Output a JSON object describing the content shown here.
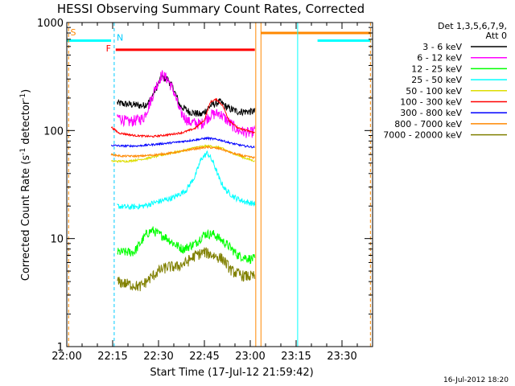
{
  "chart_data": {
    "type": "line",
    "title": "HESSI Observing Summary Count Rates, Corrected",
    "xlabel": "Start Time (17-Jul-12 21:59:42)",
    "ylabel": "Corrected Count Rate (s",
    "ylabel_sup1": "-1",
    "ylabel_mid": " detector",
    "ylabel_sup2": "-1",
    "ylabel_end": ")",
    "xlim_min": [
      0,
      100
    ],
    "ylim": [
      1,
      1000
    ],
    "yscale": "log",
    "x_ticks": [
      {
        "label": "22:00",
        "min": 0
      },
      {
        "label": "22:15",
        "min": 15
      },
      {
        "label": "22:30",
        "min": 30
      },
      {
        "label": "22:45",
        "min": 45
      },
      {
        "label": "23:00",
        "min": 60
      },
      {
        "label": "23:15",
        "min": 75
      },
      {
        "label": "23:30",
        "min": 90
      }
    ],
    "y_ticks": [
      {
        "label": "1",
        "value": 1
      },
      {
        "label": "10",
        "value": 10
      },
      {
        "label": "100",
        "value": 100
      },
      {
        "label": "1000",
        "value": 1000
      }
    ],
    "legend_header": [
      "Det 1,3,5,6,7,9,",
      "Att 0"
    ],
    "legend_position": "right",
    "series": [
      {
        "name": "3 - 6 keV",
        "color": "#000000",
        "noise": 0.08,
        "points": [
          [
            16.5,
            180
          ],
          [
            20,
            175
          ],
          [
            25,
            170
          ],
          [
            27,
            185
          ],
          [
            29,
            240
          ],
          [
            31,
            310
          ],
          [
            33,
            300
          ],
          [
            35,
            240
          ],
          [
            37,
            170
          ],
          [
            40,
            150
          ],
          [
            44,
            140
          ],
          [
            47,
            170
          ],
          [
            50,
            185
          ],
          [
            53,
            160
          ],
          [
            56,
            150
          ],
          [
            60,
            150
          ],
          [
            61.5,
            150
          ]
        ]
      },
      {
        "name": "6 - 12 keV",
        "color": "#ff00ff",
        "noise": 0.12,
        "points": [
          [
            16.5,
            135
          ],
          [
            20,
            120
          ],
          [
            25,
            130
          ],
          [
            27,
            175
          ],
          [
            29,
            250
          ],
          [
            31,
            330
          ],
          [
            33,
            300
          ],
          [
            35,
            230
          ],
          [
            37,
            150
          ],
          [
            40,
            120
          ],
          [
            44,
            115
          ],
          [
            47,
            140
          ],
          [
            50,
            145
          ],
          [
            53,
            120
          ],
          [
            56,
            100
          ],
          [
            60,
            95
          ],
          [
            61.5,
            100
          ]
        ]
      },
      {
        "name": "12 - 25 keV",
        "color": "#00ff00",
        "noise": 0.1,
        "points": [
          [
            16.5,
            7.5
          ],
          [
            20,
            7.5
          ],
          [
            22,
            7.5
          ],
          [
            24,
            9
          ],
          [
            26,
            11
          ],
          [
            28,
            12
          ],
          [
            30,
            11
          ],
          [
            32,
            10.5
          ],
          [
            35,
            9
          ],
          [
            38,
            8
          ],
          [
            42,
            9
          ],
          [
            45,
            11
          ],
          [
            48,
            11
          ],
          [
            50,
            10
          ],
          [
            53,
            8.5
          ],
          [
            56,
            7
          ],
          [
            60,
            6.5
          ],
          [
            61.5,
            6.5
          ]
        ]
      },
      {
        "name": "25 - 50 keV",
        "color": "#00ffff",
        "noise": 0.06,
        "points": [
          [
            16.5,
            20
          ],
          [
            20,
            19.5
          ],
          [
            25,
            20
          ],
          [
            30,
            22
          ],
          [
            35,
            24
          ],
          [
            39,
            28
          ],
          [
            42,
            38
          ],
          [
            44,
            55
          ],
          [
            46,
            62
          ],
          [
            48,
            50
          ],
          [
            50,
            35
          ],
          [
            52,
            28
          ],
          [
            55,
            24
          ],
          [
            58,
            22
          ],
          [
            61.5,
            21
          ]
        ]
      },
      {
        "name": "50 - 100 keV",
        "color": "#dddd00",
        "noise": 0.02,
        "points": [
          [
            14.5,
            52
          ],
          [
            20,
            52
          ],
          [
            26,
            55
          ],
          [
            32,
            60
          ],
          [
            38,
            65
          ],
          [
            42,
            70
          ],
          [
            46,
            72
          ],
          [
            50,
            70
          ],
          [
            54,
            62
          ],
          [
            58,
            56
          ],
          [
            61.5,
            52
          ]
        ]
      },
      {
        "name": "100 - 300 keV",
        "color": "#ff0000",
        "noise": 0.02,
        "points": [
          [
            14.5,
            108
          ],
          [
            17,
            95
          ],
          [
            22,
            90
          ],
          [
            28,
            88
          ],
          [
            34,
            92
          ],
          [
            38,
            96
          ],
          [
            42,
            105
          ],
          [
            45,
            125
          ],
          [
            47,
            185
          ],
          [
            49,
            195
          ],
          [
            51,
            170
          ],
          [
            53,
            125
          ],
          [
            56,
            105
          ],
          [
            59,
            100
          ],
          [
            61.5,
            95
          ]
        ]
      },
      {
        "name": "300 - 800 keV",
        "color": "#0000ff",
        "noise": 0.02,
        "points": [
          [
            14.5,
            73
          ],
          [
            18,
            72
          ],
          [
            23,
            72
          ],
          [
            30,
            75
          ],
          [
            36,
            78
          ],
          [
            42,
            82
          ],
          [
            46,
            85
          ],
          [
            50,
            82
          ],
          [
            54,
            76
          ],
          [
            58,
            72
          ],
          [
            61.5,
            70
          ]
        ]
      },
      {
        "name": "800 - 7000 keV",
        "color": "#ff8800",
        "noise": 0.02,
        "points": [
          [
            14.5,
            60
          ],
          [
            18,
            58
          ],
          [
            24,
            58
          ],
          [
            30,
            60
          ],
          [
            36,
            63
          ],
          [
            42,
            68
          ],
          [
            46,
            70
          ],
          [
            50,
            68
          ],
          [
            54,
            62
          ],
          [
            58,
            58
          ],
          [
            61.5,
            56
          ]
        ]
      },
      {
        "name": "7000 - 20000 keV",
        "color": "#808000",
        "noise": 0.12,
        "points": [
          [
            16.5,
            4
          ],
          [
            20,
            3.8
          ],
          [
            24,
            3.6
          ],
          [
            26,
            4
          ],
          [
            28,
            4.5
          ],
          [
            30,
            5
          ],
          [
            33,
            5.5
          ],
          [
            36,
            5.5
          ],
          [
            39,
            6
          ],
          [
            42,
            7
          ],
          [
            45,
            7.5
          ],
          [
            48,
            7
          ],
          [
            51,
            6.5
          ],
          [
            54,
            5
          ],
          [
            58,
            4.5
          ],
          [
            61.5,
            4.5
          ]
        ]
      }
    ],
    "annotations": {
      "saa_label": "S",
      "night_label": "N",
      "flare_label": "F"
    },
    "footer_date": "16-Jul-2012 18:20"
  }
}
